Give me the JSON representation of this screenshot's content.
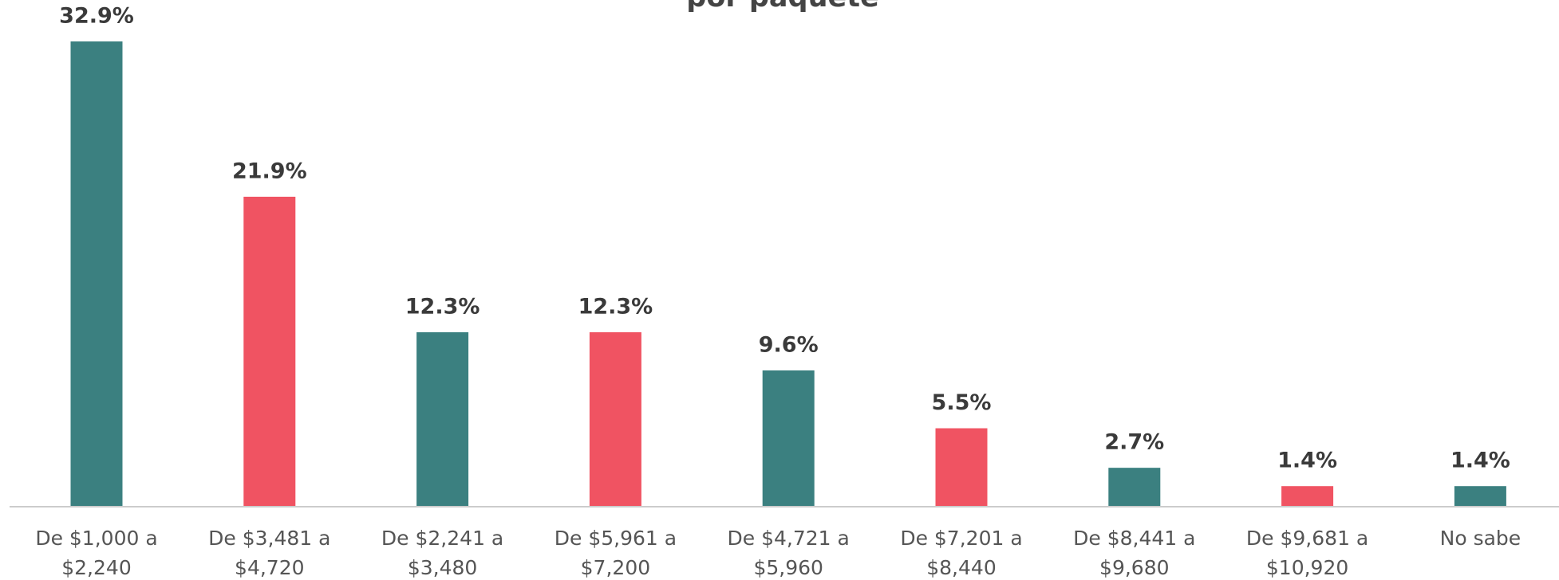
{
  "chart_data": {
    "type": "bar",
    "title": "por paquete",
    "categories": [
      [
        "De $1,000 a",
        "$2,240"
      ],
      [
        "De $3,481 a",
        "$4,720"
      ],
      [
        "De $2,241 a",
        "$3,480"
      ],
      [
        "De $5,961 a",
        "$7,200"
      ],
      [
        "De $4,721 a",
        "$5,960"
      ],
      [
        "De $7,201 a",
        "$8,440"
      ],
      [
        "De $8,441 a",
        "$9,680"
      ],
      [
        "De $9,681 a",
        "$10,920"
      ],
      [
        "No sabe"
      ]
    ],
    "values": [
      32.9,
      21.9,
      12.3,
      12.3,
      9.6,
      5.5,
      2.7,
      1.4,
      1.4
    ],
    "value_labels": [
      "32.9%",
      "21.9%",
      "12.3%",
      "12.3%",
      "9.6%",
      "5.5%",
      "2.7%",
      "1.4%",
      "1.4%"
    ],
    "colors": [
      "#3b8080",
      "#f05362",
      "#3b8080",
      "#f05362",
      "#3b8080",
      "#f05362",
      "#3b8080",
      "#f05362",
      "#3b8080"
    ]
  }
}
